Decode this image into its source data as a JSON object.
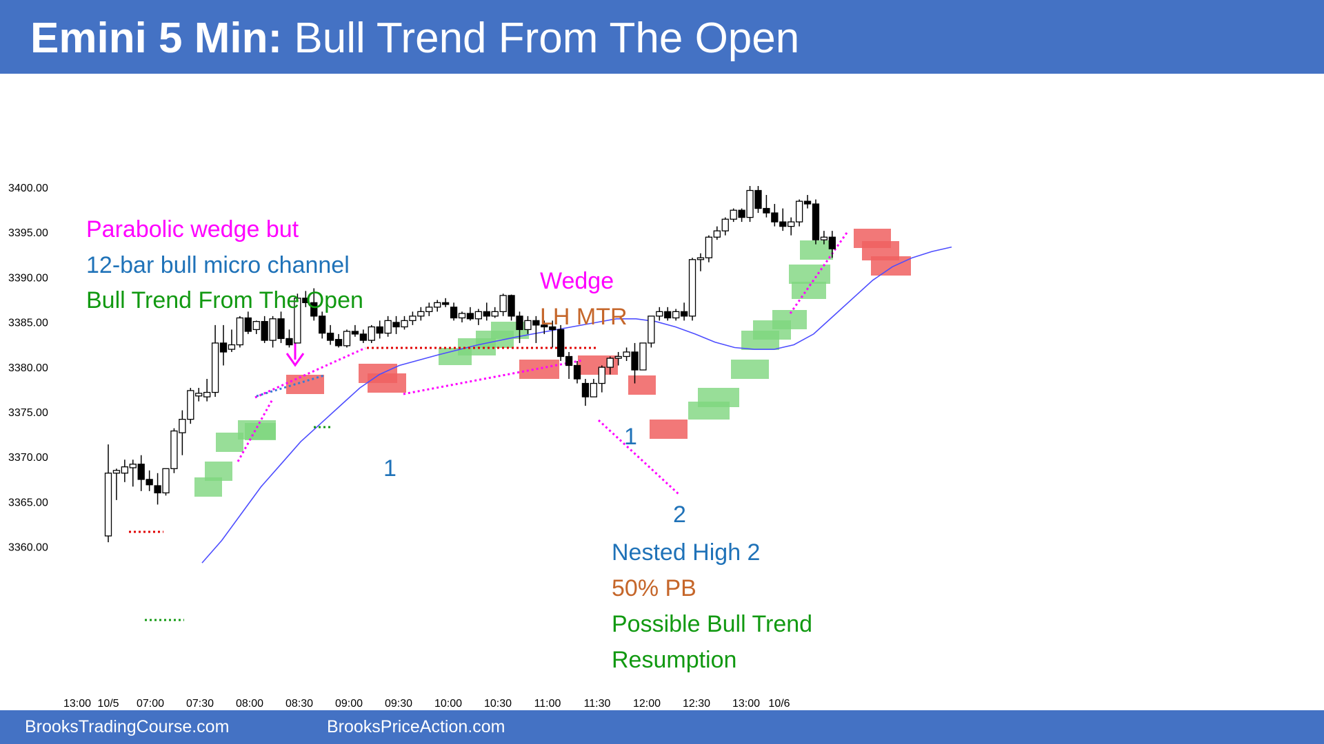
{
  "header": {
    "title_bold": "Emini 5 Min:",
    "title_rest": "Bull Trend From The Open"
  },
  "footer": {
    "left": "BrooksTradingCourse.com",
    "right": "BrooksPriceAction.com"
  },
  "colors": {
    "header_bg": "#4472c4",
    "magenta": "#ff00ff",
    "blue_text": "#1f72b8",
    "green_text": "#119911",
    "orange_text": "#c5662a",
    "ema": "#4d4dff",
    "red_dots": "#e00000",
    "green_dots": "#119911",
    "green_box": "#7ed67e",
    "red_box": "#f06060"
  },
  "chart_data": {
    "type": "candlestick",
    "title": "Emini 5 Min: Bull Trend From The Open",
    "y_ticks": [
      "3400.00",
      "3395.00",
      "3390.00",
      "3385.00",
      "3380.00",
      "3375.00",
      "3370.00",
      "3365.00",
      "3360.00"
    ],
    "x_ticks": [
      "13:00",
      "10/5",
      "07:00",
      "07:30",
      "08:00",
      "08:30",
      "09:00",
      "09:30",
      "10:00",
      "10:30",
      "11:00",
      "11:30",
      "12:00",
      "12:30",
      "13:00",
      "10/6"
    ],
    "ylim": [
      3357.0,
      3402.0
    ],
    "grid": false,
    "candles": [
      {
        "time": "06:35",
        "o": 3361.0,
        "h": 3371.2,
        "l": 3360.3,
        "c": 3368.0
      },
      {
        "time": "06:40",
        "o": 3368.0,
        "h": 3368.5,
        "l": 3365.0,
        "c": 3368.3
      },
      {
        "time": "06:45",
        "o": 3368.0,
        "h": 3369.5,
        "l": 3367.0,
        "c": 3368.7
      },
      {
        "time": "06:50",
        "o": 3368.6,
        "h": 3369.5,
        "l": 3366.5,
        "c": 3369.0
      },
      {
        "time": "06:55",
        "o": 3369.0,
        "h": 3370.0,
        "l": 3366.0,
        "c": 3367.3
      },
      {
        "time": "07:00",
        "o": 3367.3,
        "h": 3368.3,
        "l": 3366.0,
        "c": 3366.7
      },
      {
        "time": "07:05",
        "o": 3366.6,
        "h": 3368.0,
        "l": 3364.5,
        "c": 3365.8
      },
      {
        "time": "07:10",
        "o": 3365.8,
        "h": 3368.5,
        "l": 3365.5,
        "c": 3368.5
      },
      {
        "time": "07:15",
        "o": 3368.5,
        "h": 3373.0,
        "l": 3368.0,
        "c": 3372.7
      },
      {
        "time": "07:20",
        "o": 3372.5,
        "h": 3375.0,
        "l": 3370.0,
        "c": 3374.0
      },
      {
        "time": "07:25",
        "o": 3374.0,
        "h": 3377.5,
        "l": 3373.5,
        "c": 3377.2
      },
      {
        "time": "07:30",
        "o": 3376.6,
        "h": 3377.5,
        "l": 3376.0,
        "c": 3376.9
      },
      {
        "time": "07:35",
        "o": 3376.5,
        "h": 3378.5,
        "l": 3376.0,
        "c": 3377.0
      },
      {
        "time": "07:40",
        "o": 3377.0,
        "h": 3384.5,
        "l": 3376.5,
        "c": 3382.5
      },
      {
        "time": "07:45",
        "o": 3382.5,
        "h": 3384.5,
        "l": 3380.0,
        "c": 3381.5
      },
      {
        "time": "07:50",
        "o": 3381.8,
        "h": 3384.0,
        "l": 3381.5,
        "c": 3382.3
      },
      {
        "time": "07:55",
        "o": 3382.3,
        "h": 3385.5,
        "l": 3382.0,
        "c": 3385.3
      },
      {
        "time": "08:00",
        "o": 3385.3,
        "h": 3386.0,
        "l": 3383.5,
        "c": 3383.8
      },
      {
        "time": "08:05",
        "o": 3384.0,
        "h": 3385.0,
        "l": 3383.5,
        "c": 3384.9
      },
      {
        "time": "08:10",
        "o": 3384.9,
        "h": 3385.5,
        "l": 3382.5,
        "c": 3382.8
      },
      {
        "time": "08:15",
        "o": 3382.8,
        "h": 3385.5,
        "l": 3382.0,
        "c": 3385.2
      },
      {
        "time": "08:20",
        "o": 3385.2,
        "h": 3386.0,
        "l": 3382.5,
        "c": 3383.0
      },
      {
        "time": "08:25",
        "o": 3383.0,
        "h": 3384.0,
        "l": 3382.0,
        "c": 3382.3
      },
      {
        "time": "08:30",
        "o": 3382.5,
        "h": 3388.0,
        "l": 3382.5,
        "c": 3387.5
      },
      {
        "time": "08:35",
        "o": 3387.5,
        "h": 3388.3,
        "l": 3386.5,
        "c": 3387.0
      },
      {
        "time": "08:40",
        "o": 3387.0,
        "h": 3388.6,
        "l": 3385.0,
        "c": 3385.5
      },
      {
        "time": "08:45",
        "o": 3385.5,
        "h": 3386.0,
        "l": 3383.0,
        "c": 3383.6
      },
      {
        "time": "08:50",
        "o": 3383.6,
        "h": 3384.5,
        "l": 3382.3,
        "c": 3382.8
      },
      {
        "time": "08:55",
        "o": 3382.9,
        "h": 3383.5,
        "l": 3382.0,
        "c": 3382.2
      },
      {
        "time": "09:00",
        "o": 3382.2,
        "h": 3384.0,
        "l": 3382.0,
        "c": 3383.8
      },
      {
        "time": "09:05",
        "o": 3383.8,
        "h": 3384.5,
        "l": 3383.2,
        "c": 3383.5
      },
      {
        "time": "09:10",
        "o": 3383.5,
        "h": 3384.0,
        "l": 3382.5,
        "c": 3382.8
      },
      {
        "time": "09:15",
        "o": 3382.8,
        "h": 3384.5,
        "l": 3382.5,
        "c": 3384.3
      },
      {
        "time": "09:20",
        "o": 3384.3,
        "h": 3385.0,
        "l": 3383.0,
        "c": 3383.6
      },
      {
        "time": "09:25",
        "o": 3383.6,
        "h": 3385.5,
        "l": 3383.2,
        "c": 3385.0
      },
      {
        "time": "09:30",
        "o": 3384.8,
        "h": 3385.5,
        "l": 3383.5,
        "c": 3384.3
      },
      {
        "time": "09:35",
        "o": 3384.3,
        "h": 3385.5,
        "l": 3384.0,
        "c": 3385.0
      },
      {
        "time": "09:40",
        "o": 3385.0,
        "h": 3386.0,
        "l": 3384.5,
        "c": 3385.5
      },
      {
        "time": "09:45",
        "o": 3385.5,
        "h": 3386.5,
        "l": 3385.0,
        "c": 3386.0
      },
      {
        "time": "09:50",
        "o": 3386.0,
        "h": 3387.0,
        "l": 3385.5,
        "c": 3386.5
      },
      {
        "time": "09:55",
        "o": 3386.5,
        "h": 3387.3,
        "l": 3386.0,
        "c": 3387.0
      },
      {
        "time": "10:00",
        "o": 3387.0,
        "h": 3387.5,
        "l": 3386.5,
        "c": 3386.8
      },
      {
        "time": "10:05",
        "o": 3386.5,
        "h": 3387.0,
        "l": 3385.0,
        "c": 3385.3
      },
      {
        "time": "10:10",
        "o": 3385.3,
        "h": 3386.0,
        "l": 3384.8,
        "c": 3385.8
      },
      {
        "time": "10:15",
        "o": 3385.8,
        "h": 3386.5,
        "l": 3385.0,
        "c": 3385.2
      },
      {
        "time": "10:20",
        "o": 3385.2,
        "h": 3386.3,
        "l": 3384.5,
        "c": 3386.0
      },
      {
        "time": "10:25",
        "o": 3386.0,
        "h": 3387.0,
        "l": 3385.0,
        "c": 3385.5
      },
      {
        "time": "10:30",
        "o": 3385.5,
        "h": 3386.5,
        "l": 3385.3,
        "c": 3386.0
      },
      {
        "time": "10:35",
        "o": 3386.0,
        "h": 3388.0,
        "l": 3385.5,
        "c": 3387.8
      },
      {
        "time": "10:40",
        "o": 3387.8,
        "h": 3387.9,
        "l": 3385.0,
        "c": 3385.5
      },
      {
        "time": "10:45",
        "o": 3385.5,
        "h": 3386.0,
        "l": 3382.5,
        "c": 3384.0
      },
      {
        "time": "10:50",
        "o": 3384.0,
        "h": 3385.5,
        "l": 3383.5,
        "c": 3385.0
      },
      {
        "time": "10:55",
        "o": 3385.0,
        "h": 3385.5,
        "l": 3382.5,
        "c": 3384.5
      },
      {
        "time": "11:00",
        "o": 3384.5,
        "h": 3385.0,
        "l": 3383.5,
        "c": 3384.3
      },
      {
        "time": "11:05",
        "o": 3384.3,
        "h": 3385.0,
        "l": 3382.0,
        "c": 3384.0
      },
      {
        "time": "11:10",
        "o": 3384.0,
        "h": 3384.5,
        "l": 3380.5,
        "c": 3381.0
      },
      {
        "time": "11:15",
        "o": 3381.0,
        "h": 3381.5,
        "l": 3378.5,
        "c": 3380.0
      },
      {
        "time": "11:20",
        "o": 3380.0,
        "h": 3380.5,
        "l": 3378.0,
        "c": 3378.5
      },
      {
        "time": "11:25",
        "o": 3378.0,
        "h": 3378.5,
        "l": 3375.5,
        "c": 3376.5
      },
      {
        "time": "11:30",
        "o": 3376.5,
        "h": 3378.5,
        "l": 3376.5,
        "c": 3378.0
      },
      {
        "time": "11:35",
        "o": 3378.0,
        "h": 3380.0,
        "l": 3377.0,
        "c": 3379.8
      },
      {
        "time": "11:40",
        "o": 3379.8,
        "h": 3381.0,
        "l": 3379.0,
        "c": 3380.8
      },
      {
        "time": "11:45",
        "o": 3380.8,
        "h": 3381.5,
        "l": 3380.0,
        "c": 3381.0
      },
      {
        "time": "11:50",
        "o": 3381.0,
        "h": 3382.0,
        "l": 3380.5,
        "c": 3381.5
      },
      {
        "time": "11:55",
        "o": 3381.5,
        "h": 3382.5,
        "l": 3378.0,
        "c": 3379.5
      },
      {
        "time": "12:00",
        "o": 3379.5,
        "h": 3382.5,
        "l": 3379.5,
        "c": 3382.5
      },
      {
        "time": "12:05",
        "o": 3382.5,
        "h": 3385.5,
        "l": 3382.0,
        "c": 3385.5
      },
      {
        "time": "12:10",
        "o": 3385.5,
        "h": 3386.5,
        "l": 3385.0,
        "c": 3386.0
      },
      {
        "time": "12:15",
        "o": 3386.0,
        "h": 3386.5,
        "l": 3385.0,
        "c": 3385.3
      },
      {
        "time": "12:20",
        "o": 3385.3,
        "h": 3386.3,
        "l": 3385.0,
        "c": 3386.0
      },
      {
        "time": "12:25",
        "o": 3386.0,
        "h": 3387.0,
        "l": 3385.0,
        "c": 3385.5
      },
      {
        "time": "12:30",
        "o": 3385.5,
        "h": 3392.0,
        "l": 3385.0,
        "c": 3391.8
      },
      {
        "time": "12:35",
        "o": 3391.8,
        "h": 3392.5,
        "l": 3390.5,
        "c": 3392.0
      },
      {
        "time": "12:40",
        "o": 3392.0,
        "h": 3394.5,
        "l": 3391.5,
        "c": 3394.3
      },
      {
        "time": "12:45",
        "o": 3394.3,
        "h": 3395.5,
        "l": 3394.0,
        "c": 3395.0
      },
      {
        "time": "12:50",
        "o": 3395.0,
        "h": 3396.5,
        "l": 3394.5,
        "c": 3396.3
      },
      {
        "time": "12:55",
        "o": 3396.3,
        "h": 3397.5,
        "l": 3396.0,
        "c": 3397.3
      },
      {
        "time": "13:00",
        "o": 3397.3,
        "h": 3397.5,
        "l": 3396.0,
        "c": 3396.5
      },
      {
        "time": "13:05",
        "o": 3396.5,
        "h": 3400.0,
        "l": 3396.0,
        "c": 3399.5
      },
      {
        "time": "13:10",
        "o": 3399.5,
        "h": 3400.0,
        "l": 3397.0,
        "c": 3397.5
      },
      {
        "time": "13:15",
        "o": 3397.5,
        "h": 3399.0,
        "l": 3396.5,
        "c": 3397.0
      },
      {
        "time": "13:20",
        "o": 3397.0,
        "h": 3398.0,
        "l": 3395.5,
        "c": 3396.0
      },
      {
        "time": "13:25",
        "o": 3396.0,
        "h": 3397.5,
        "l": 3395.0,
        "c": 3395.5
      },
      {
        "time": "13:30",
        "o": 3395.5,
        "h": 3396.5,
        "l": 3394.5,
        "c": 3396.0
      },
      {
        "time": "13:35",
        "o": 3396.0,
        "h": 3398.5,
        "l": 3395.5,
        "c": 3398.3
      },
      {
        "time": "13:40",
        "o": 3398.3,
        "h": 3399.0,
        "l": 3397.5,
        "c": 3398.0
      },
      {
        "time": "13:45",
        "o": 3398.0,
        "h": 3398.5,
        "l": 3393.5,
        "c": 3394.0
      },
      {
        "time": "13:50",
        "o": 3394.0,
        "h": 3395.0,
        "l": 3393.5,
        "c": 3394.3
      },
      {
        "time": "13:55",
        "o": 3394.3,
        "h": 3395.0,
        "l": 3392.0,
        "c": 3393.0
      }
    ],
    "ema": [
      [
        30,
        3358.0
      ],
      [
        35,
        3360.5
      ],
      [
        40,
        3363.5
      ],
      [
        45,
        3366.5
      ],
      [
        50,
        3369.0
      ],
      [
        55,
        3371.5
      ],
      [
        60,
        3373.5
      ],
      [
        65,
        3375.5
      ],
      [
        70,
        3377.5
      ],
      [
        75,
        3379.0
      ],
      [
        80,
        3380.0
      ],
      [
        90,
        3381.2
      ],
      [
        100,
        3382.3
      ],
      [
        110,
        3383.2
      ],
      [
        120,
        3384.0
      ],
      [
        130,
        3384.8
      ],
      [
        135,
        3385.2
      ],
      [
        140,
        3385.2
      ],
      [
        145,
        3384.9
      ],
      [
        150,
        3384.3
      ],
      [
        155,
        3383.5
      ],
      [
        160,
        3382.6
      ],
      [
        165,
        3382.0
      ],
      [
        170,
        3381.8
      ],
      [
        175,
        3381.8
      ],
      [
        180,
        3382.3
      ],
      [
        185,
        3383.5
      ],
      [
        190,
        3385.5
      ],
      [
        195,
        3387.5
      ],
      [
        200,
        3389.5
      ],
      [
        205,
        3391.0
      ],
      [
        210,
        3392.0
      ],
      [
        215,
        3392.7
      ],
      [
        220,
        3393.2
      ]
    ],
    "annotations": [
      {
        "text": "Parabolic wedge but",
        "color": "magenta"
      },
      {
        "text": "12-bar bull micro channel",
        "color": "blue_text"
      },
      {
        "text": "Bull Trend From The Open",
        "color": "green_text"
      },
      {
        "text": "Wedge",
        "color": "magenta"
      },
      {
        "text": "LH MTR",
        "color": "orange_text"
      },
      {
        "text": "1",
        "color": "blue_text"
      },
      {
        "text": "1",
        "color": "blue_text"
      },
      {
        "text": "2",
        "color": "blue_text"
      },
      {
        "text": "Nested High 2",
        "color": "blue_text"
      },
      {
        "text": "50% PB",
        "color": "orange_text"
      },
      {
        "text": "Possible Bull Trend",
        "color": "green_text"
      },
      {
        "text": "Resumption",
        "color": "green_text"
      }
    ]
  }
}
